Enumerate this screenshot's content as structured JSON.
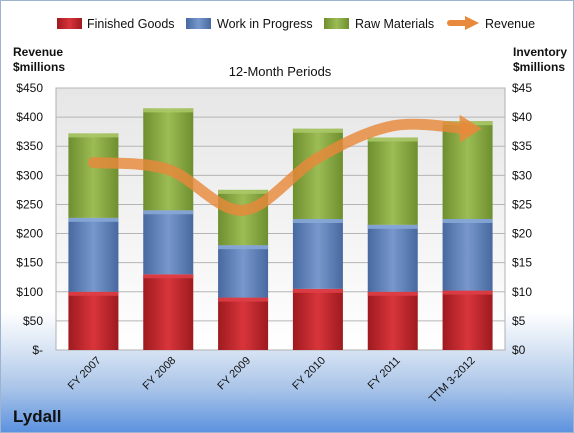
{
  "company": "Lydall",
  "chart_data": {
    "type": "bar",
    "stacked": true,
    "title": "12-Month Periods",
    "categories": [
      "FY 2007",
      "FY 2008",
      "FY 2009",
      "FY 2010",
      "FY 2011",
      "TTM 3-2012"
    ],
    "left_axis": {
      "label_line1": "Revenue",
      "label_line2": "$millions",
      "ylim": [
        0,
        450
      ],
      "ticks": [
        "$-",
        "$50",
        "$100",
        "$150",
        "$200",
        "$250",
        "$300",
        "$350",
        "$400",
        "$450"
      ]
    },
    "right_axis": {
      "label_line1": "Inventory",
      "label_line2": "$millions",
      "ylim": [
        0,
        45
      ],
      "ticks": [
        "$0",
        "$5",
        "$10",
        "$15",
        "$20",
        "$25",
        "$30",
        "$35",
        "$40",
        "$45"
      ]
    },
    "series": [
      {
        "name": "Finished Goods",
        "axis": "right",
        "type": "bar",
        "color": "#c0272d",
        "values": [
          10.0,
          13.0,
          9.0,
          10.5,
          10.0,
          10.2
        ]
      },
      {
        "name": "Work in Progress",
        "axis": "right",
        "type": "bar",
        "color": "#5b7fb8",
        "values": [
          12.7,
          11.0,
          9.0,
          12.0,
          11.5,
          12.3
        ]
      },
      {
        "name": "Raw Materials",
        "axis": "right",
        "type": "bar",
        "color": "#83a83c",
        "values": [
          14.5,
          17.5,
          9.5,
          15.5,
          15.0,
          16.8
        ]
      },
      {
        "name": "Revenue",
        "axis": "left",
        "type": "line",
        "color": "#e8893b",
        "values": [
          322,
          310,
          240,
          330,
          385,
          380
        ]
      }
    ],
    "legend_position": "top",
    "grid": true
  }
}
